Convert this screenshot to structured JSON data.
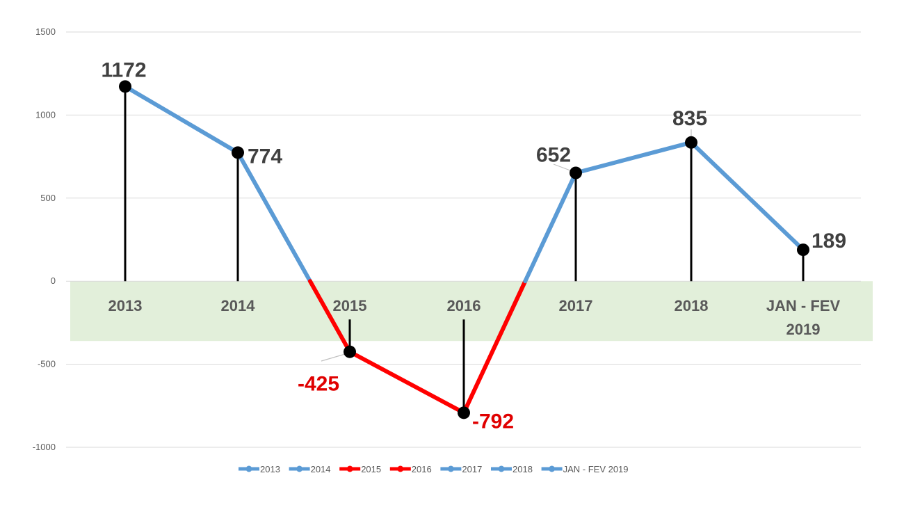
{
  "chart_data": {
    "type": "line",
    "categories": [
      "2013",
      "2014",
      "2015",
      "2016",
      "2017",
      "2018",
      "JAN - FEV 2019"
    ],
    "category_lines": [
      [
        "2013"
      ],
      [
        "2014"
      ],
      [
        "2015"
      ],
      [
        "2016"
      ],
      [
        "2017"
      ],
      [
        "2018"
      ],
      [
        "JAN - FEV",
        "2019"
      ]
    ],
    "values": [
      1172,
      774,
      -425,
      -792,
      652,
      835,
      189
    ],
    "value_labels": [
      "1172",
      "774",
      "-425",
      "-792",
      "652",
      "835",
      "189"
    ],
    "y_ticks": [
      1500,
      1000,
      500,
      0,
      -500,
      -1000
    ],
    "y_tick_labels": [
      "1500",
      "1000",
      "500",
      "0",
      "-500",
      "-1000"
    ],
    "ylim": [
      -1000,
      1500
    ],
    "grid": true,
    "category_band": {
      "from": 0,
      "to": -360,
      "color": "#e2efda"
    },
    "colors": {
      "positive": "#5b9bd5",
      "negative": "#ff0000",
      "marker": "#000000",
      "label_positive": "#404040",
      "label_negative": "#e00000",
      "grid": "#d9d9d9",
      "axis_text": "#595959",
      "category_text": "#595959"
    },
    "legend": {
      "position": "bottom",
      "items": [
        {
          "label": "2013",
          "color": "#5b9bd5"
        },
        {
          "label": "2014",
          "color": "#5b9bd5"
        },
        {
          "label": "2015",
          "color": "#ff0000"
        },
        {
          "label": "2016",
          "color": "#ff0000"
        },
        {
          "label": "2017",
          "color": "#5b9bd5"
        },
        {
          "label": "2018",
          "color": "#5b9bd5"
        },
        {
          "label": "JAN - FEV 2019",
          "color": "#5b9bd5"
        }
      ]
    }
  }
}
